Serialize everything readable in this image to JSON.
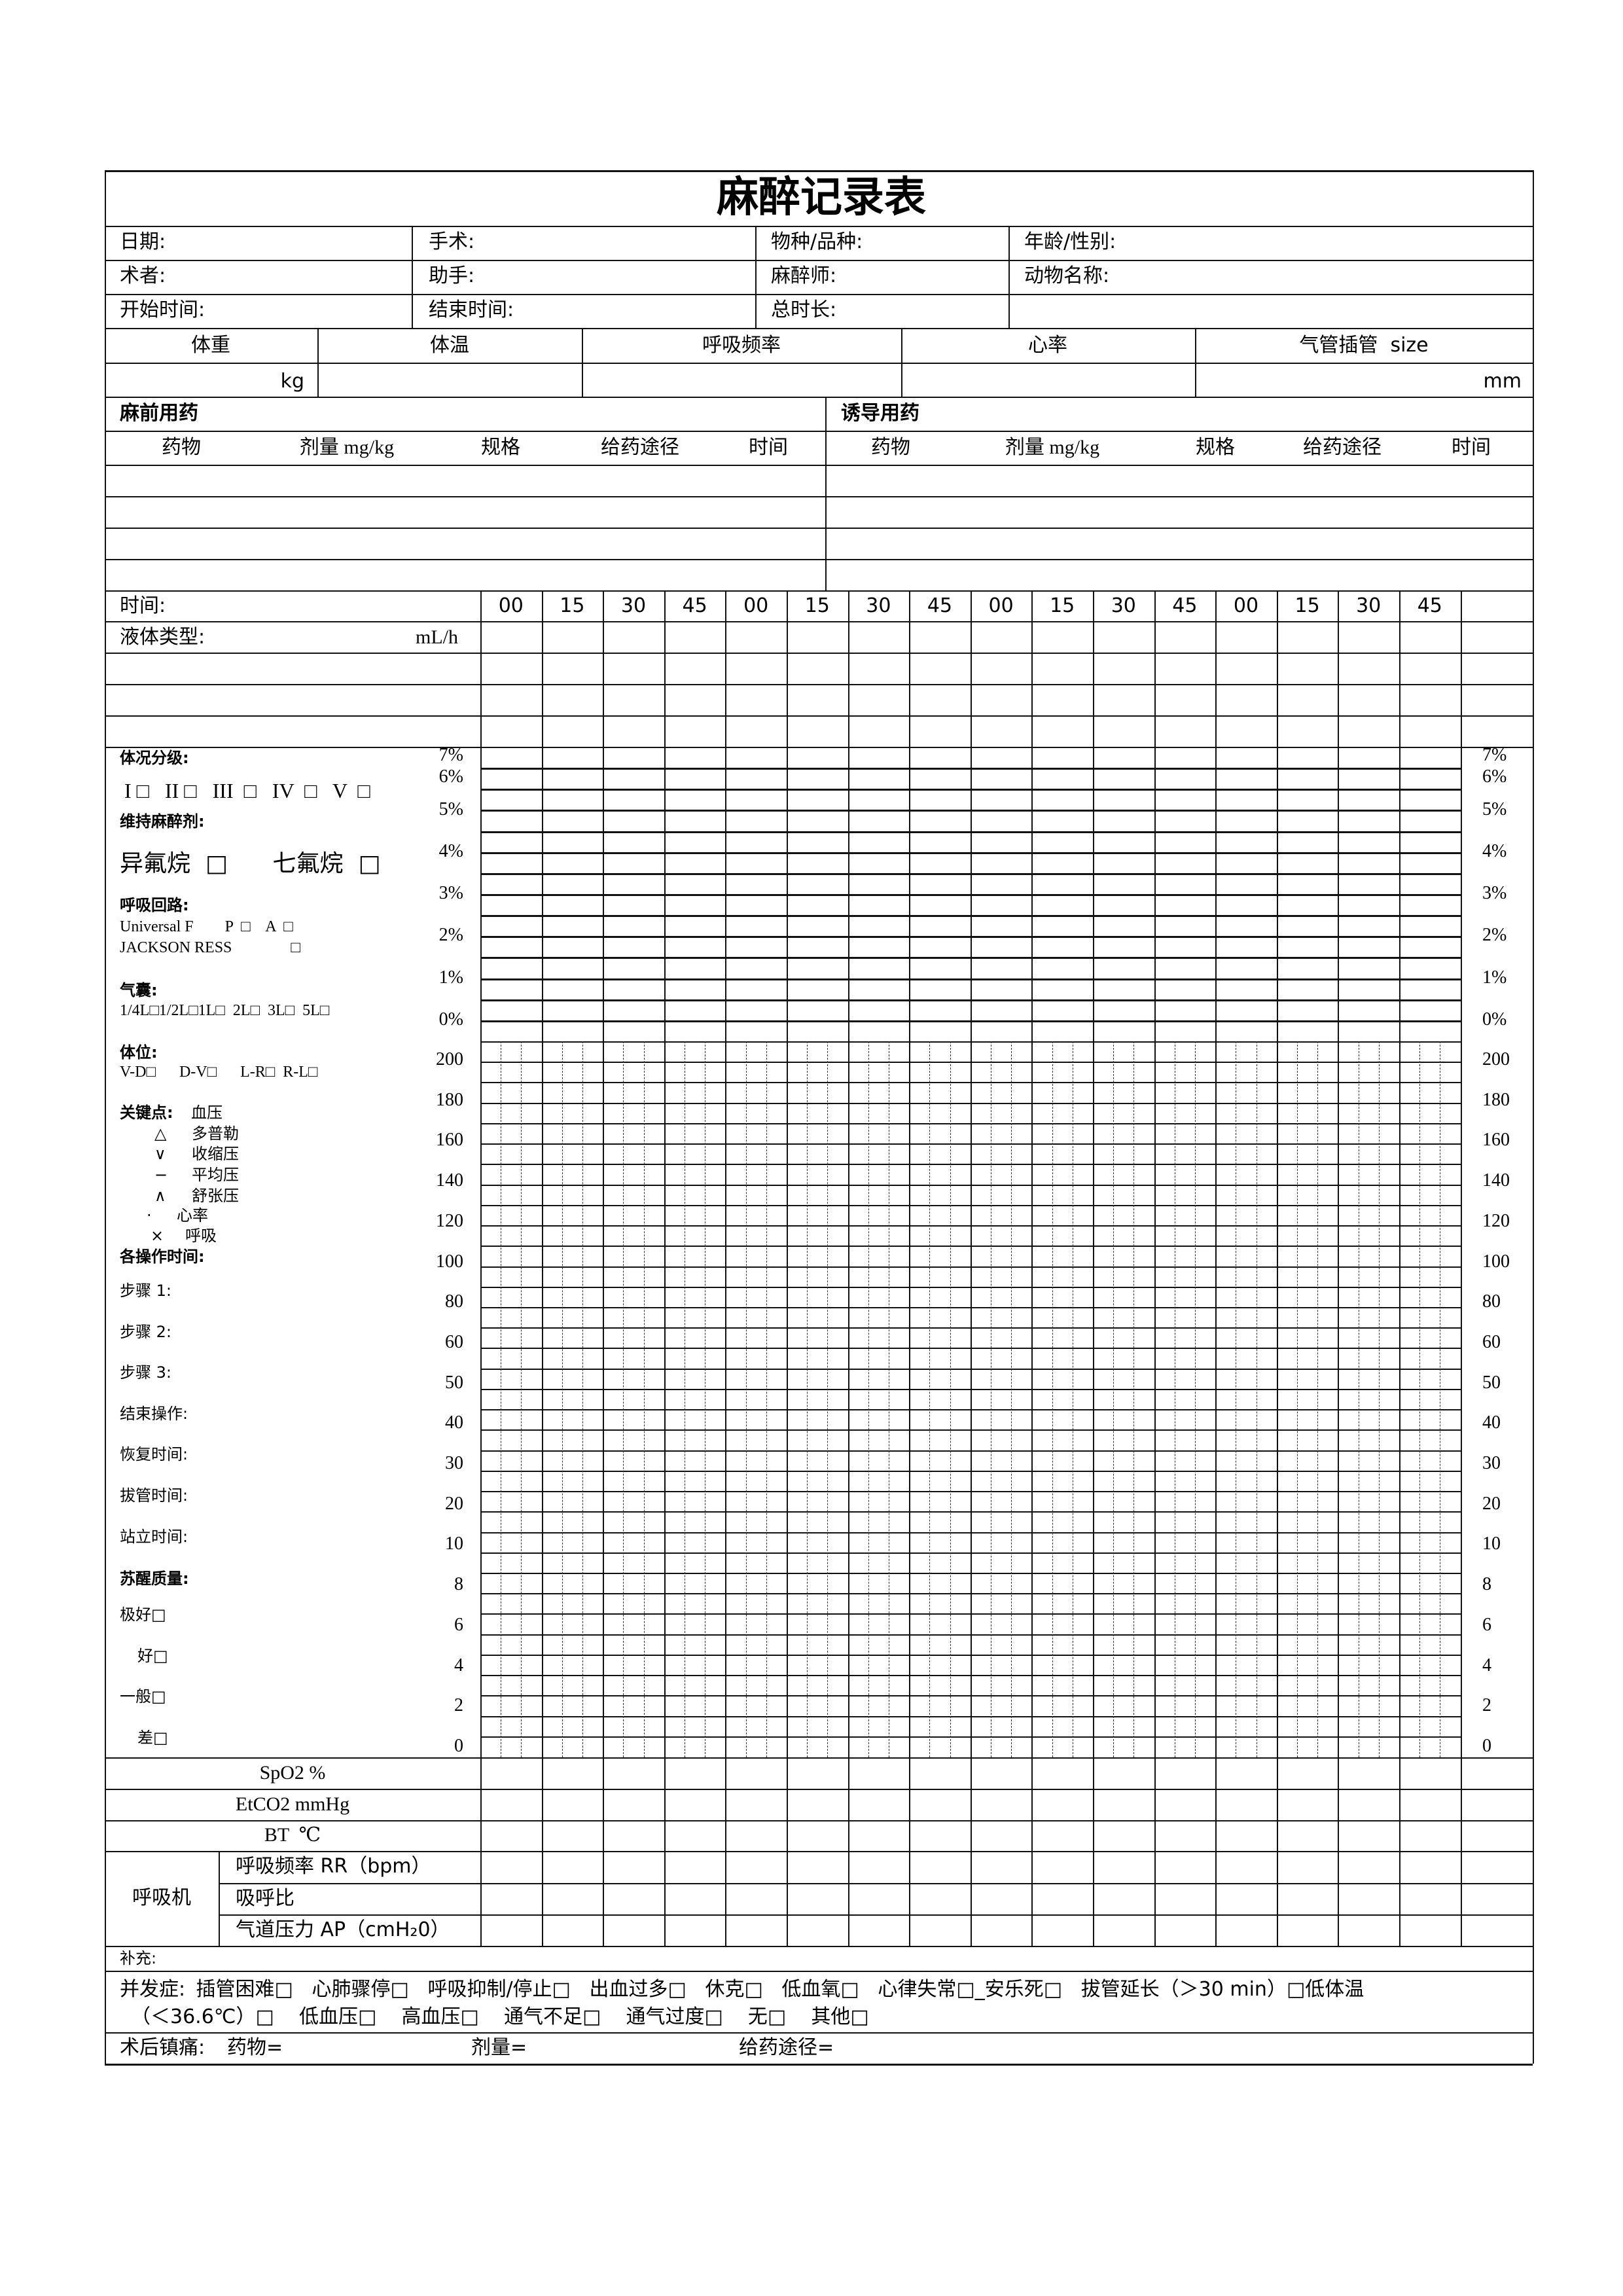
{
  "title": "麻醉记录表",
  "info": [
    [
      "日期:",
      "手术:",
      "物种/品种:",
      "年龄/性别:"
    ],
    [
      "术者:",
      "助手:",
      "麻醉师:",
      "动物名称:"
    ],
    [
      "开始时间:",
      "结束时间:",
      "总时长:",
      ""
    ]
  ],
  "vitals": {
    "headers": [
      "体重",
      "体温",
      "呼吸频率",
      "心率",
      "气管插管  size"
    ],
    "weight_unit": "kg",
    "tube_unit": "mm"
  },
  "premed": {
    "title": "麻前用药",
    "columns": [
      "药物",
      "剂量 mg/kg",
      "规格",
      "给药途径",
      "时间"
    ]
  },
  "induction": {
    "title": "诱导用药",
    "columns": [
      "药物",
      "剂量 mg/kg",
      "规格",
      "给药途径",
      "时间"
    ]
  },
  "timeline": {
    "time_label": "时间:",
    "times": [
      "00",
      "15",
      "30",
      "45",
      "00",
      "15",
      "30",
      "45",
      "00",
      "15",
      "30",
      "45",
      "00",
      "15",
      "30",
      "45"
    ],
    "fluid_label": "液体类型:",
    "fluid_unit": "mL/h"
  },
  "left_panel": {
    "asa_title": "体况分级:",
    "asa_options": "I □   II □   III  □   IV  □   V  □",
    "maintenance_title": "维持麻醉剂:",
    "maintenance_options": "异氟烷  □      七氟烷  □",
    "circuit_title": "呼吸回路:",
    "circuit_line1": "Universal F        P  □    A  □",
    "circuit_line2": "JACKSON RESS               □",
    "bag_title": "气囊:",
    "bag_options": "1/4L□1/2L□1L□  2L□  3L□  5L□",
    "position_title": "体位:",
    "position_options": "V-D□      D-V□      L-R□  R-L□",
    "legend_title": "关键点:",
    "legend_bp": "血压",
    "legend": [
      {
        "symbol": "△",
        "label": "多普勒"
      },
      {
        "symbol": "∨",
        "label": "收缩压"
      },
      {
        "symbol": "−",
        "label": "平均压"
      },
      {
        "symbol": "∧",
        "label": "舒张压"
      },
      {
        "symbol": "·",
        "label": "心率"
      },
      {
        "symbol": "×",
        "label": "呼吸"
      }
    ],
    "ops_title": "各操作时间:",
    "ops": [
      "步骤 1:",
      "步骤 2:",
      "步骤 3:",
      "结束操作:",
      "恢复时间:",
      "拔管时间:",
      "站立时间:"
    ],
    "recovery_title": "苏醒质量:",
    "recovery": [
      "极好□",
      "好□",
      "一般□",
      "差□"
    ]
  },
  "chart_scale": {
    "percent_ticks": [
      "7%",
      "6%",
      "5%",
      "4%",
      "3%",
      "2%",
      "1%",
      "0%"
    ],
    "bp_ticks": [
      "200",
      "180",
      "160",
      "140",
      "120",
      "100",
      "80",
      "60",
      "50",
      "40",
      "30",
      "20",
      "10",
      "8",
      "6",
      "4",
      "2",
      "0"
    ]
  },
  "monitor_rows": [
    "SpO2 %",
    "EtCO2 mmHg",
    "BT  ℃"
  ],
  "ventilator": {
    "label": "呼吸机",
    "rows": [
      "呼吸频率 RR（bpm）",
      "吸呼比",
      "气道压力 AP（cmH₂0）"
    ]
  },
  "supplement": "补充:",
  "complications": {
    "label": "并发症:",
    "line1": " 插管困难□   心肺骤停□   呼吸抑制/停止□   出血过多□   休克□   低血氧□   心律失常□_安乐死□   拔管延长（＞30 min）□低体温",
    "line2": "（＜36.6℃）□    低血压□    高血压□    通气不足□    通气过度□    无□    其他□"
  },
  "analgesia": {
    "label": "术后镇痛:",
    "drug": "药物=",
    "dose": "剂量=",
    "route": "给药途径="
  }
}
